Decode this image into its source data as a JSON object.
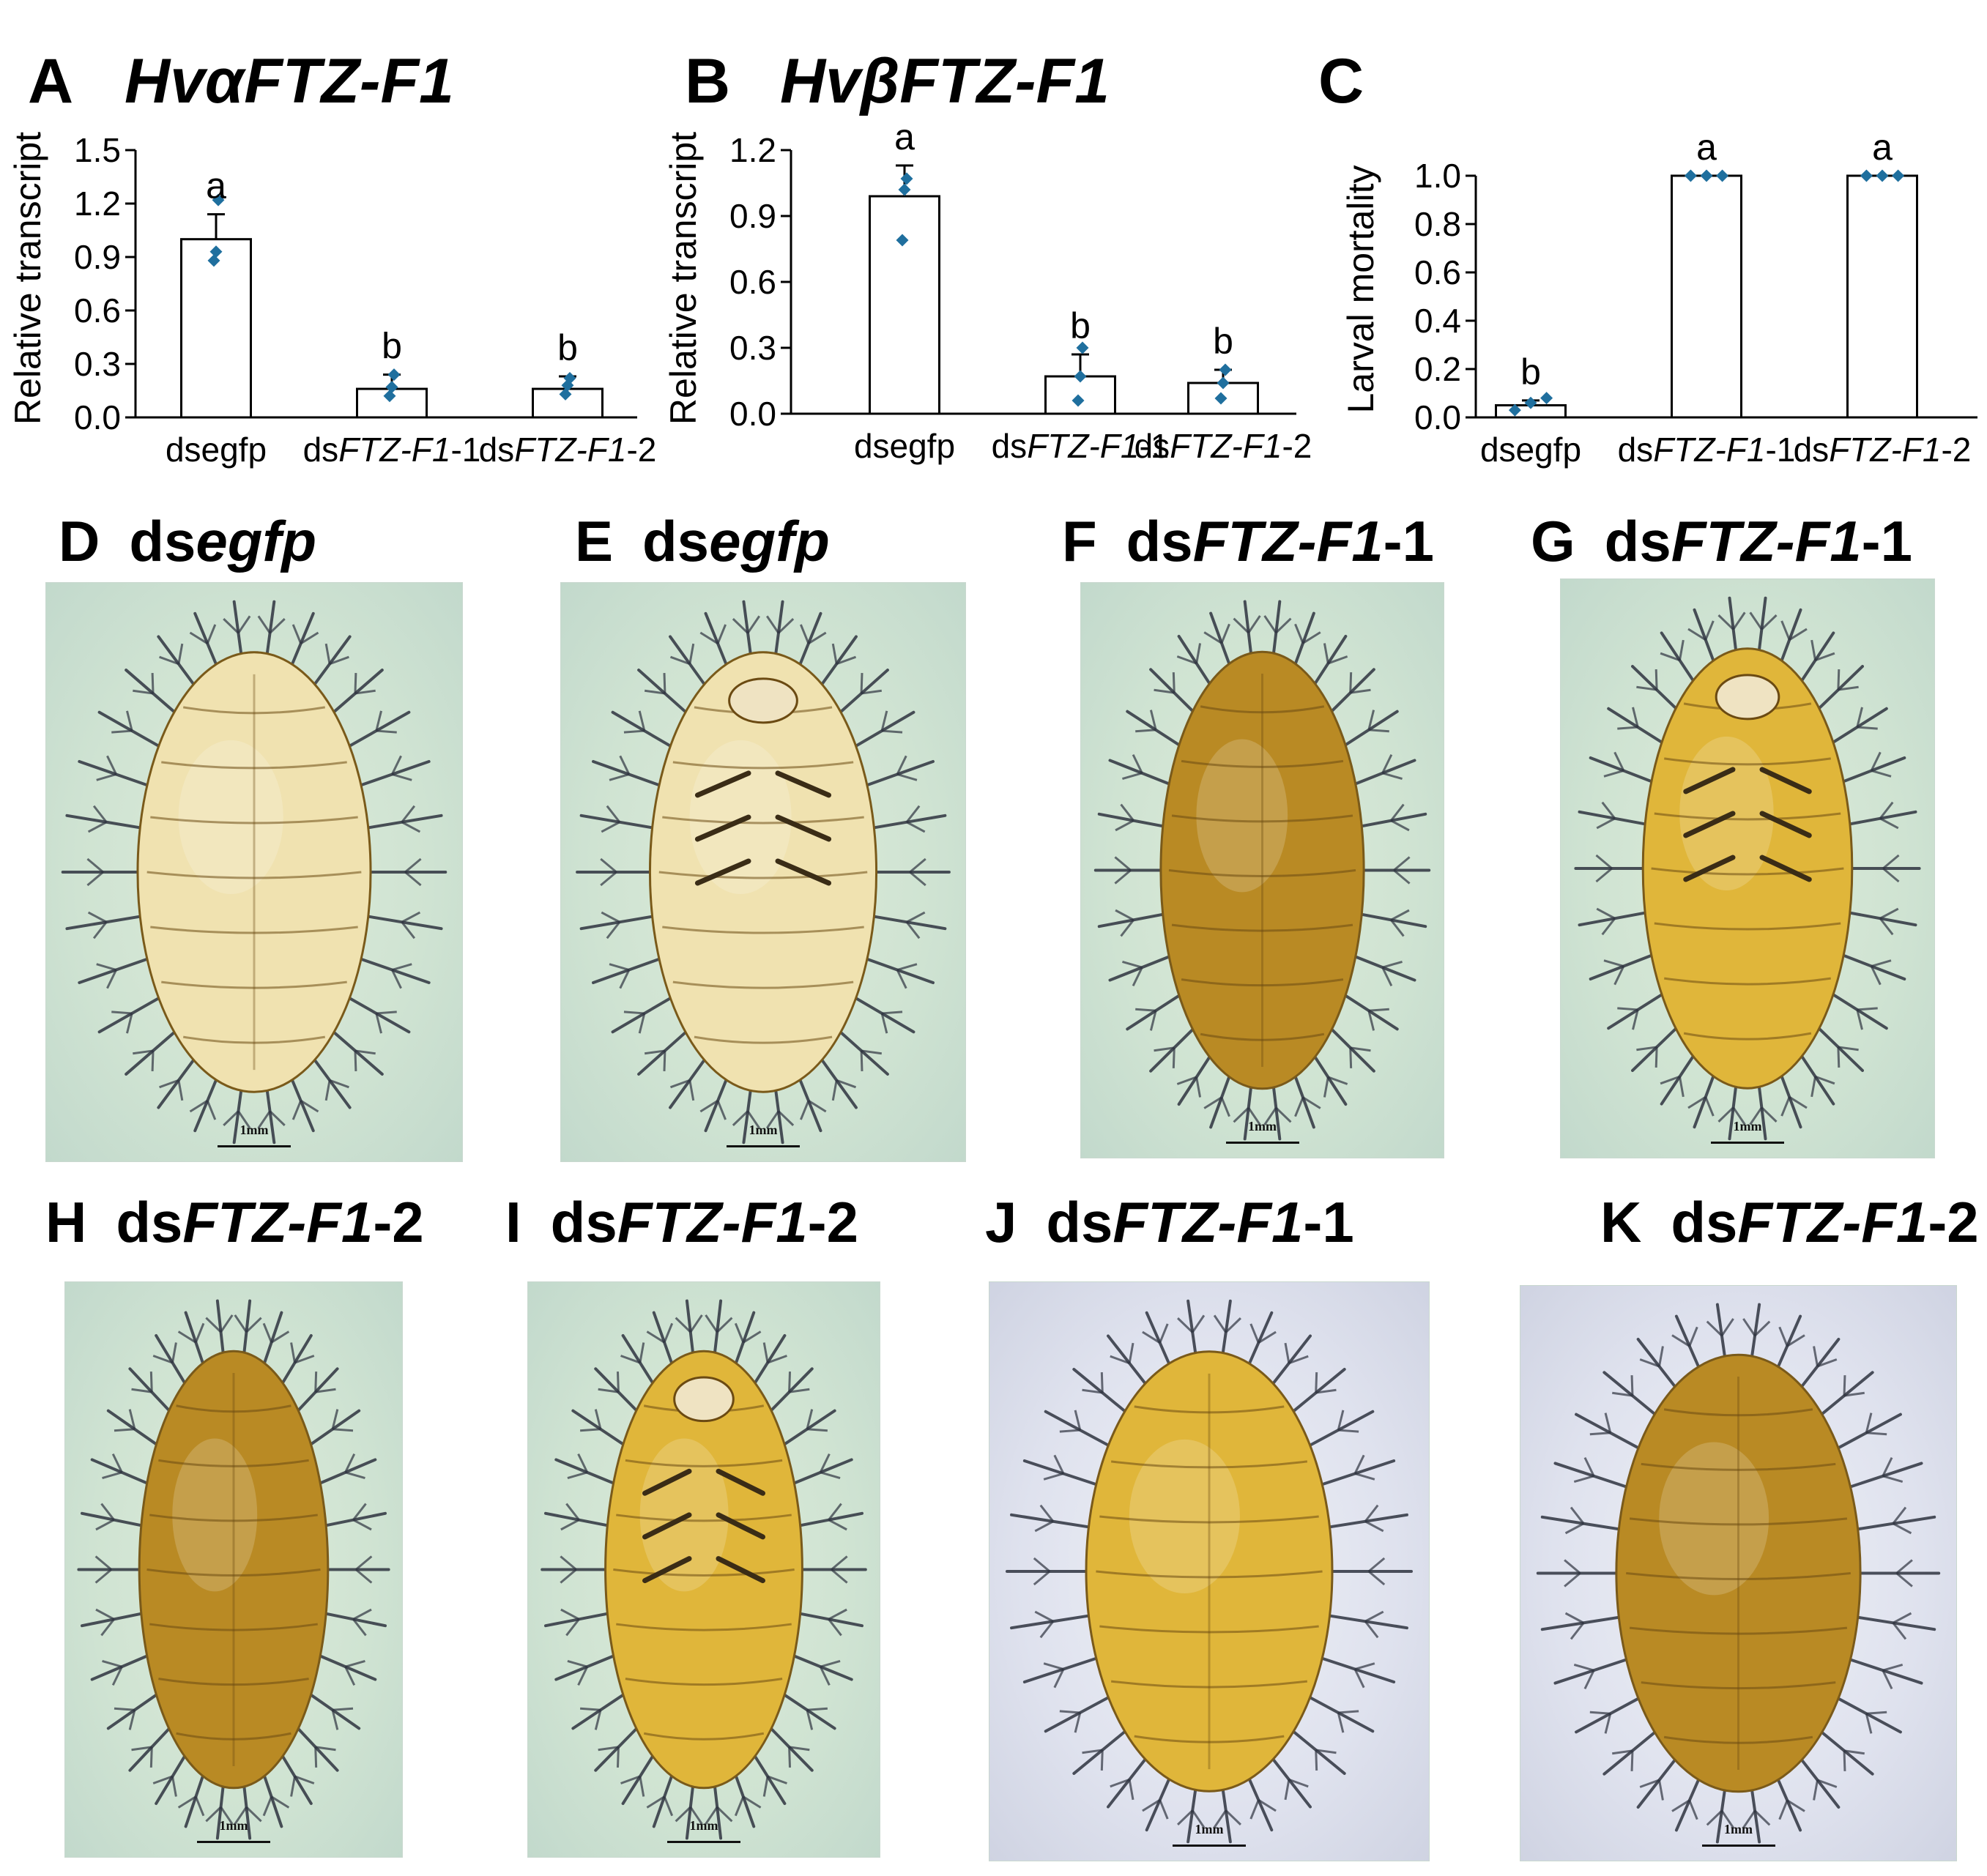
{
  "chart_data": [
    {
      "panel": "A",
      "type": "bar",
      "title": "HvαFTZ-F1",
      "ylabel": "Relative transcript",
      "xlabel": "",
      "categories": [
        "dsegfp",
        "dsFTZ-F1-1",
        "dsFTZ-F1-2"
      ],
      "values": [
        1.0,
        0.16,
        0.16
      ],
      "errors": [
        0.14,
        0.08,
        0.07
      ],
      "points": [
        [
          1.22,
          0.93,
          0.88
        ],
        [
          0.24,
          0.17,
          0.12
        ],
        [
          0.22,
          0.18,
          0.13
        ]
      ],
      "significance": [
        "a",
        "b",
        "b"
      ],
      "ylim": [
        0,
        1.5
      ],
      "yticks": [
        "0.0",
        "0.3",
        "0.6",
        "0.9",
        "1.2",
        "1.5"
      ]
    },
    {
      "panel": "B",
      "type": "bar",
      "title": "HvβFTZ-F1",
      "ylabel": "Relative transcript",
      "xlabel": "",
      "categories": [
        "dsegfp",
        "dsFTZ-F1-1",
        "dsFTZ-F1-2"
      ],
      "values": [
        0.99,
        0.17,
        0.14
      ],
      "errors": [
        0.14,
        0.1,
        0.06
      ],
      "points": [
        [
          1.07,
          1.02,
          0.79
        ],
        [
          0.3,
          0.17,
          0.06
        ],
        [
          0.2,
          0.14,
          0.07
        ]
      ],
      "significance": [
        "a",
        "b",
        "b"
      ],
      "ylim": [
        0,
        1.2
      ],
      "yticks": [
        "0.0",
        "0.3",
        "0.6",
        "0.9",
        "1.2"
      ]
    },
    {
      "panel": "C",
      "type": "bar",
      "title": "",
      "ylabel": "Larval  mortality",
      "xlabel": "",
      "categories": [
        "dsegfp",
        "dsFTZ-F1-1",
        "dsFTZ-F1-2"
      ],
      "values": [
        0.05,
        1.0,
        1.0
      ],
      "errors": [
        0.02,
        0.0,
        0.0
      ],
      "points": [
        [
          0.03,
          0.06,
          0.08
        ],
        [
          1.0,
          1.0,
          1.0
        ],
        [
          1.0,
          1.0,
          1.0
        ]
      ],
      "significance": [
        "b",
        "a",
        "a"
      ],
      "ylim": [
        0,
        1.0
      ],
      "yticks": [
        "0.0",
        "0.2",
        "0.4",
        "0.6",
        "0.8",
        "1.0"
      ]
    }
  ],
  "photos": [
    {
      "panel": "D",
      "prefix": "ds",
      "italic": "egfp",
      "suffix": "",
      "scale": "1mm"
    },
    {
      "panel": "E",
      "prefix": "ds",
      "italic": "egfp",
      "suffix": "",
      "scale": "1mm"
    },
    {
      "panel": "F",
      "prefix": "ds",
      "italic": "FTZ-F1",
      "suffix": "-1",
      "scale": "1mm"
    },
    {
      "panel": "G",
      "prefix": "ds",
      "italic": "FTZ-F1",
      "suffix": "-1",
      "scale": "1mm"
    },
    {
      "panel": "H",
      "prefix": "ds",
      "italic": "FTZ-F1",
      "suffix": "-2",
      "scale": "1mm"
    },
    {
      "panel": "I",
      "prefix": "ds",
      "italic": "FTZ-F1",
      "suffix": "-2",
      "scale": "1mm"
    },
    {
      "panel": "J",
      "prefix": "ds",
      "italic": "FTZ-F1",
      "suffix": "-1",
      "scale": "1mm"
    },
    {
      "panel": "K",
      "prefix": "ds",
      "italic": "FTZ-F1",
      "suffix": "-2",
      "scale": "1mm"
    }
  ],
  "colors": {
    "bar_fill": "#ffffff",
    "bar_stroke": "#000000",
    "point": "#1f6f9e",
    "photo_green_bg": "#cfe3d2",
    "photo_white_bg": "#dfe2ee",
    "larva_yellow": "#e0b63a",
    "larva_amber": "#b98a24",
    "larva_pale": "#f0e2b0",
    "spine_dark": "#2f3440"
  }
}
